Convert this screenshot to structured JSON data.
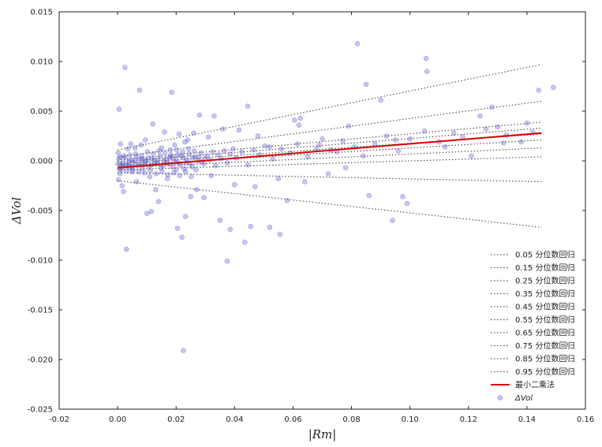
{
  "chart_data": {
    "type": "scatter",
    "xlabel": "|Rm|",
    "ylabel": "ΔVol",
    "xlim": [
      -0.02,
      0.16
    ],
    "ylim": [
      -0.025,
      0.015
    ],
    "x_ticks": [
      -0.02,
      0.0,
      0.02,
      0.04,
      0.06,
      0.08,
      0.1,
      0.12,
      0.14,
      0.16
    ],
    "x_tick_labels": [
      "-0.02",
      "0.00",
      "0.02",
      "0.04",
      "0.06",
      "0.08",
      "0.10",
      "0.12",
      "0.14",
      "0.16"
    ],
    "y_ticks": [
      -0.025,
      -0.02,
      -0.015,
      -0.01,
      -0.005,
      0.0,
      0.005,
      0.01,
      0.015
    ],
    "y_tick_labels": [
      "-0.025",
      "-0.020",
      "-0.015",
      "-0.010",
      "-0.005",
      "0.000",
      "0.005",
      "0.010",
      "0.015"
    ],
    "grid": false,
    "legend_position": "bottom-right",
    "colors": {
      "scatter": "#3333cc",
      "ols": "#dd0000",
      "quantile": "#555555",
      "axes": "#222222"
    },
    "quantile_lines": [
      {
        "name": "0.05 分位数回归",
        "x": [
          0.0,
          0.145
        ],
        "y": [
          -0.002,
          -0.0067
        ]
      },
      {
        "name": "0.15 分位数回归",
        "x": [
          0.0,
          0.145
        ],
        "y": [
          -0.0012,
          -0.0021
        ]
      },
      {
        "name": "0.25 分位数回归",
        "x": [
          0.0,
          0.145
        ],
        "y": [
          -0.0009,
          0.0004
        ]
      },
      {
        "name": "0.35 分位数回归",
        "x": [
          0.0,
          0.145
        ],
        "y": [
          -0.0007,
          0.0013
        ]
      },
      {
        "name": "0.45 分位数回归",
        "x": [
          0.0,
          0.145
        ],
        "y": [
          -0.0005,
          0.0021
        ]
      },
      {
        "name": "0.55 分位数回归",
        "x": [
          0.0,
          0.145
        ],
        "y": [
          -0.0003,
          0.0027
        ]
      },
      {
        "name": "0.65 分位数回归",
        "x": [
          0.0,
          0.145
        ],
        "y": [
          -0.0001,
          0.0033
        ]
      },
      {
        "name": "0.75 分位数回归",
        "x": [
          0.0,
          0.145
        ],
        "y": [
          0.0001,
          0.0039
        ]
      },
      {
        "name": "0.85 分位数回归",
        "x": [
          0.0,
          0.145
        ],
        "y": [
          0.0004,
          0.006
        ]
      },
      {
        "name": "0.95 分位数回归",
        "x": [
          0.0,
          0.145
        ],
        "y": [
          0.0011,
          0.0097
        ]
      }
    ],
    "ols_line": {
      "name": "最小二乘法",
      "x": [
        0.0,
        0.145
      ],
      "y": [
        -0.0007,
        0.0028
      ]
    },
    "scatter": {
      "name": "ΔVol",
      "points": [
        [
          0.0005,
          0.0052
        ],
        [
          0.0025,
          0.0094
        ],
        [
          0.0075,
          0.0071
        ],
        [
          0.0185,
          0.0069
        ],
        [
          0.0003,
          -0.0019
        ],
        [
          0.0015,
          -0.0025
        ],
        [
          0.003,
          -0.0089
        ],
        [
          0.01,
          -0.0053
        ],
        [
          0.0115,
          -0.0051
        ],
        [
          0.014,
          -0.0041
        ],
        [
          0.0205,
          -0.0068
        ],
        [
          0.022,
          -0.0077
        ],
        [
          0.0232,
          -0.0056
        ],
        [
          0.0225,
          -0.0191
        ],
        [
          0.0295,
          -0.0037
        ],
        [
          0.035,
          -0.006
        ],
        [
          0.0375,
          -0.0101
        ],
        [
          0.0385,
          -0.0069
        ],
        [
          0.0435,
          -0.0082
        ],
        [
          0.0445,
          0.0055
        ],
        [
          0.0455,
          -0.0066
        ],
        [
          0.052,
          -0.0067
        ],
        [
          0.0555,
          -0.0074
        ],
        [
          0.0605,
          0.0041
        ],
        [
          0.062,
          0.0036
        ],
        [
          0.0625,
          0.0043
        ],
        [
          0.079,
          0.0035
        ],
        [
          0.082,
          0.0118
        ],
        [
          0.085,
          0.0077
        ],
        [
          0.086,
          -0.0035
        ],
        [
          0.09,
          0.0061
        ],
        [
          0.094,
          -0.006
        ],
        [
          0.0975,
          -0.0036
        ],
        [
          0.099,
          -0.0043
        ],
        [
          0.1055,
          0.0103
        ],
        [
          0.1058,
          0.009
        ],
        [
          0.121,
          0.0005
        ],
        [
          0.124,
          0.0045
        ],
        [
          0.128,
          0.0054
        ],
        [
          0.13,
          0.0034
        ],
        [
          0.14,
          0.0038
        ],
        [
          0.144,
          0.0071
        ],
        [
          0.149,
          0.0074
        ],
        [
          0.095,
          0.0021
        ],
        [
          0.11,
          0.0019
        ],
        [
          0.115,
          0.0028
        ],
        [
          0.133,
          0.0026
        ],
        [
          0.138,
          0.0019
        ],
        [
          0.07,
          0.0022
        ],
        [
          0.075,
          0.0009
        ],
        [
          0.068,
          0.0012
        ],
        [
          0.072,
          -0.0013
        ],
        [
          0.078,
          -0.0007
        ],
        [
          0.064,
          -0.0021
        ],
        [
          0.058,
          -0.004
        ],
        [
          0.055,
          -0.0018
        ],
        [
          0.052,
          0.0014
        ],
        [
          0.048,
          0.0025
        ],
        [
          0.047,
          -0.0026
        ],
        [
          0.0415,
          0.0031
        ],
        [
          0.04,
          -0.0024
        ],
        [
          0.036,
          0.0032
        ],
        [
          0.033,
          0.0045
        ],
        [
          0.032,
          -0.0015
        ],
        [
          0.031,
          0.0024
        ],
        [
          0.028,
          0.0046
        ],
        [
          0.027,
          -0.0029
        ],
        [
          0.026,
          0.0028
        ],
        [
          0.025,
          -0.0036
        ],
        [
          0.024,
          0.0021
        ],
        [
          0.023,
          0.0019
        ],
        [
          0.021,
          0.0027
        ],
        [
          0.02,
          -0.0009
        ],
        [
          0.0195,
          0.0016
        ],
        [
          0.018,
          0.0011
        ],
        [
          0.017,
          -0.0018
        ],
        [
          0.016,
          0.0029
        ],
        [
          0.015,
          0.0013
        ],
        [
          0.013,
          -0.0029
        ],
        [
          0.012,
          0.0037
        ],
        [
          0.011,
          -0.0016
        ],
        [
          0.0095,
          0.0021
        ],
        [
          0.0085,
          -0.0008
        ],
        [
          0.008,
          0.0016
        ],
        [
          0.0065,
          -0.0021
        ],
        [
          0.006,
          0.0013
        ],
        [
          0.005,
          -0.0011
        ],
        [
          0.0045,
          0.0017
        ],
        [
          0.004,
          -0.0006
        ],
        [
          0.0035,
          0.0012
        ],
        [
          0.002,
          -0.0031
        ],
        [
          0.001,
          0.0017
        ],
        [
          0.0008,
          -0.0013
        ],
        [
          0.0002,
          0.0008
        ],
        [
          0.0015,
          -0.0006
        ],
        [
          0.0025,
          0.0003
        ],
        [
          0.0035,
          -0.0004
        ],
        [
          0.0045,
          0.0001
        ],
        [
          0.0055,
          -0.0002
        ],
        [
          0.0065,
          0.0004
        ],
        [
          0.0075,
          -0.0003
        ],
        [
          0.0085,
          0.0002
        ],
        [
          0.0095,
          -0.0001
        ],
        [
          0.0105,
          0.0003
        ],
        [
          0.0115,
          -0.0004
        ],
        [
          0.0125,
          0.0001
        ],
        [
          0.0135,
          -0.0002
        ],
        [
          0.0145,
          0.0005
        ],
        [
          0.0155,
          -0.0005
        ],
        [
          0.0165,
          0.0002
        ],
        [
          0.0175,
          -0.0003
        ],
        [
          0.0185,
          0.0004
        ],
        [
          0.0195,
          -0.0001
        ],
        [
          0.0205,
          0.0006
        ],
        [
          0.0215,
          -0.0004
        ],
        [
          0.0225,
          0.0003
        ],
        [
          0.0235,
          -0.0002
        ],
        [
          0.0245,
          0.0007
        ],
        [
          0.0255,
          -0.0006
        ],
        [
          0.0265,
          0.0004
        ],
        [
          0.0275,
          0.0
        ],
        [
          0.0285,
          0.0008
        ],
        [
          0.0295,
          -0.0003
        ],
        [
          0.0305,
          0.0005
        ],
        [
          0.0315,
          0.0001
        ],
        [
          0.0325,
          0.0009
        ],
        [
          0.0335,
          -0.0005
        ],
        [
          0.0345,
          0.0006
        ],
        [
          0.0355,
          0.0002
        ],
        [
          0.0365,
          0.001
        ],
        [
          0.0375,
          -0.0002
        ],
        [
          0.0385,
          0.0007
        ],
        [
          0.0395,
          0.0012
        ],
        [
          0.0405,
          0.0003
        ],
        [
          0.0425,
          0.0009
        ],
        [
          0.0445,
          -0.0004
        ],
        [
          0.0465,
          0.0011
        ],
        [
          0.0485,
          0.0006
        ],
        [
          0.0505,
          0.0015
        ],
        [
          0.053,
          0.0002
        ],
        [
          0.056,
          0.0012
        ],
        [
          0.059,
          0.0008
        ],
        [
          0.0615,
          0.0017
        ],
        [
          0.065,
          0.0004
        ],
        [
          0.069,
          0.0016
        ],
        [
          0.073,
          0.0011
        ],
        [
          0.077,
          0.002
        ],
        [
          0.081,
          0.0014
        ],
        [
          0.084,
          0.0005
        ],
        [
          0.088,
          0.0017
        ],
        [
          0.092,
          0.0025
        ],
        [
          0.096,
          0.001
        ],
        [
          0.1,
          0.0022
        ],
        [
          0.105,
          0.003
        ],
        [
          0.112,
          0.0014
        ],
        [
          0.118,
          0.0024
        ],
        [
          0.126,
          0.0032
        ],
        [
          0.132,
          0.0018
        ],
        [
          0.142,
          0.0029
        ],
        [
          0.0012,
          -0.0004
        ],
        [
          0.0018,
          -0.0002
        ],
        [
          0.0028,
          -0.0005
        ],
        [
          0.0038,
          -0.0001
        ],
        [
          0.0048,
          -0.0006
        ],
        [
          0.0058,
          0.0
        ],
        [
          0.0068,
          -0.0005
        ],
        [
          0.0078,
          0.0001
        ],
        [
          0.0088,
          -0.0004
        ],
        [
          0.0098,
          0.0
        ],
        [
          0.0108,
          -0.0006
        ],
        [
          0.0118,
          0.0002
        ],
        [
          0.0128,
          -0.0003
        ],
        [
          0.0138,
          0.0001
        ],
        [
          0.0148,
          -0.0007
        ],
        [
          0.0158,
          0.0
        ],
        [
          0.0168,
          -0.0002
        ],
        [
          0.0178,
          0.0003
        ],
        [
          0.0188,
          -0.0006
        ],
        [
          0.0198,
          0.0002
        ],
        [
          0.0208,
          -0.0002
        ],
        [
          0.0218,
          0.0005
        ],
        [
          0.0228,
          -0.0008
        ],
        [
          0.0238,
          0.0001
        ],
        [
          0.0248,
          -0.0003
        ],
        [
          0.0258,
          0.0003
        ],
        [
          0.0268,
          -0.0009
        ],
        [
          0.0278,
          0.0004
        ],
        [
          0.0288,
          -0.0001
        ],
        [
          0.0298,
          0.0002
        ],
        [
          0.0001,
          -0.0003
        ],
        [
          0.0004,
          0.0002
        ],
        [
          0.0006,
          -0.0008
        ],
        [
          0.0009,
          0.0004
        ],
        [
          0.0014,
          -0.0009
        ],
        [
          0.0022,
          0.0005
        ],
        [
          0.0032,
          -0.001
        ],
        [
          0.0042,
          0.0006
        ],
        [
          0.0052,
          -0.0009
        ],
        [
          0.0062,
          0.0007
        ],
        [
          0.0072,
          -0.0011
        ],
        [
          0.0082,
          0.0005
        ],
        [
          0.0092,
          -0.0012
        ],
        [
          0.0102,
          0.0009
        ],
        [
          0.0112,
          -0.001
        ],
        [
          0.0122,
          0.0007
        ],
        [
          0.0132,
          -0.0013
        ],
        [
          0.0142,
          0.001
        ],
        [
          0.0152,
          -0.0011
        ],
        [
          0.0162,
          0.0008
        ],
        [
          0.0172,
          -0.0014
        ],
        [
          0.0182,
          0.0006
        ],
        [
          0.0192,
          -0.0012
        ],
        [
          0.0202,
          0.0011
        ],
        [
          0.0212,
          -0.0015
        ],
        [
          0.0222,
          0.0009
        ],
        [
          0.0232,
          -0.0011
        ],
        [
          0.0242,
          0.0012
        ],
        [
          0.0252,
          -0.0016
        ],
        [
          0.0262,
          0.001
        ]
      ]
    }
  }
}
